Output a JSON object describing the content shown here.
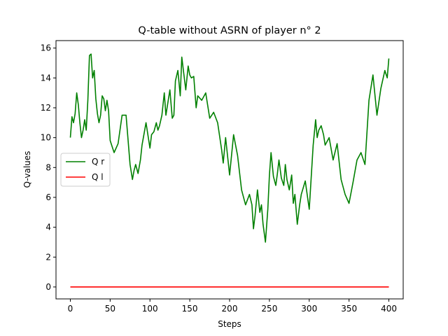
{
  "chart_data": {
    "type": "line",
    "title": "Q-table without ASRN of player n° 2",
    "xlabel": "Steps",
    "ylabel": "Q-values",
    "xlim": [
      -18,
      418
    ],
    "ylim": [
      -0.8,
      16.5
    ],
    "xticks": [
      0,
      50,
      100,
      150,
      200,
      250,
      300,
      350,
      400
    ],
    "yticks": [
      0,
      2,
      4,
      6,
      8,
      10,
      12,
      14,
      16
    ],
    "grid": false,
    "legend_position": "center-left",
    "series": [
      {
        "name": "Q r",
        "color": "#008000",
        "x": [
          0,
          2,
          4,
          6,
          8,
          10,
          12,
          14,
          16,
          18,
          20,
          22,
          24,
          26,
          28,
          30,
          32,
          34,
          36,
          38,
          40,
          42,
          44,
          46,
          48,
          50,
          55,
          60,
          65,
          70,
          75,
          78,
          80,
          82,
          85,
          88,
          90,
          95,
          100,
          102,
          105,
          108,
          110,
          112,
          115,
          118,
          120,
          125,
          128,
          130,
          132,
          135,
          138,
          140,
          142,
          145,
          148,
          150,
          152,
          155,
          158,
          160,
          165,
          170,
          175,
          180,
          185,
          190,
          192,
          195,
          198,
          200,
          205,
          210,
          215,
          220,
          225,
          228,
          230,
          232,
          235,
          238,
          240,
          242,
          245,
          248,
          250,
          252,
          255,
          258,
          260,
          262,
          265,
          268,
          270,
          272,
          275,
          278,
          280,
          282,
          285,
          288,
          290,
          295,
          300,
          305,
          308,
          310,
          312,
          315,
          318,
          320,
          325,
          330,
          335,
          340,
          345,
          350,
          355,
          360,
          365,
          370,
          375,
          380,
          385,
          390,
          395,
          398,
          400
        ],
        "values": [
          10.0,
          11.4,
          11.0,
          11.6,
          13.0,
          12.2,
          11.0,
          10.0,
          10.5,
          11.2,
          10.5,
          12.5,
          15.5,
          15.6,
          14.0,
          14.5,
          12.6,
          11.6,
          11.0,
          11.5,
          12.8,
          12.6,
          11.8,
          12.5,
          11.8,
          9.8,
          9.0,
          9.6,
          11.5,
          11.5,
          8.2,
          7.2,
          7.8,
          8.2,
          7.6,
          8.5,
          9.5,
          11.0,
          9.3,
          10.2,
          10.4,
          11.0,
          10.5,
          10.8,
          11.5,
          13.0,
          11.5,
          13.2,
          11.3,
          11.5,
          13.8,
          14.5,
          12.8,
          15.4,
          14.5,
          13.2,
          14.8,
          14.2,
          14.0,
          14.1,
          12.0,
          12.8,
          12.5,
          13.0,
          11.3,
          11.7,
          11.0,
          9.2,
          8.3,
          10.0,
          8.5,
          7.5,
          10.2,
          8.8,
          6.5,
          5.5,
          6.2,
          5.5,
          3.9,
          4.8,
          6.5,
          5.0,
          5.5,
          4.2,
          3.0,
          5.2,
          7.5,
          9.0,
          7.4,
          6.8,
          7.6,
          8.5,
          7.3,
          6.8,
          8.2,
          7.2,
          6.5,
          7.5,
          5.6,
          6.2,
          4.2,
          5.5,
          6.2,
          7.1,
          5.2,
          9.5,
          11.2,
          10.0,
          10.5,
          10.8,
          10.2,
          9.5,
          10.0,
          8.5,
          9.6,
          7.2,
          6.2,
          5.6,
          7.0,
          8.5,
          9.0,
          8.2,
          12.5,
          14.2,
          11.5,
          13.3,
          14.5,
          14.0,
          15.3
        ]
      },
      {
        "name": "Q l",
        "color": "#ff0000",
        "x": [
          0,
          400
        ],
        "values": [
          0,
          0
        ]
      }
    ]
  }
}
